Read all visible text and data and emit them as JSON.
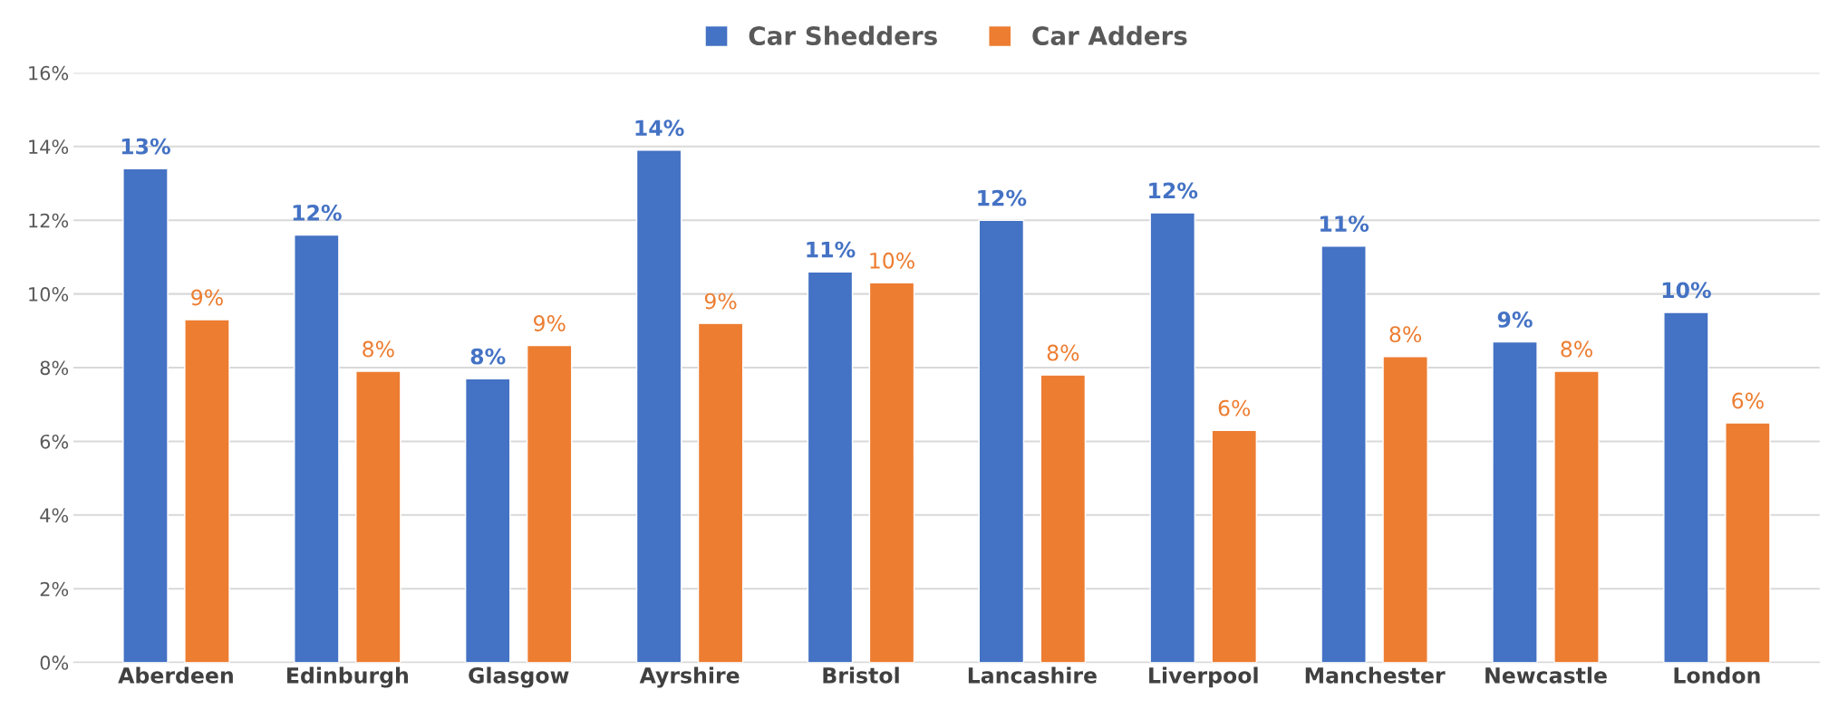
{
  "chart_data": {
    "type": "bar",
    "categories": [
      "Aberdeen",
      "Edinburgh",
      "Glasgow",
      "Ayrshire",
      "Bristol",
      "Lancashire",
      "Liverpool",
      "Manchester",
      "Newcastle",
      "London"
    ],
    "series": [
      {
        "name": "Car Shedders",
        "color": "#4472c4",
        "values": [
          13.4,
          11.6,
          7.7,
          13.9,
          10.6,
          12.0,
          12.2,
          11.3,
          8.7,
          9.5
        ],
        "value_labels": [
          "13%",
          "12%",
          "8%",
          "14%",
          "11%",
          "12%",
          "12%",
          "11%",
          "9%",
          "10%"
        ]
      },
      {
        "name": "Car Adders",
        "color": "#ed7d31",
        "values": [
          9.3,
          7.9,
          8.6,
          9.2,
          10.3,
          7.8,
          6.3,
          8.3,
          7.9,
          6.5
        ],
        "value_labels": [
          "9%",
          "8%",
          "9%",
          "9%",
          "10%",
          "8%",
          "6%",
          "8%",
          "8%",
          "6%"
        ]
      }
    ],
    "ylim": [
      0,
      16
    ],
    "yticks": [
      {
        "value": 0,
        "label": "0%"
      },
      {
        "value": 2,
        "label": "2%"
      },
      {
        "value": 4,
        "label": "4%"
      },
      {
        "value": 6,
        "label": "6%"
      },
      {
        "value": 8,
        "label": "8%"
      },
      {
        "value": 10,
        "label": "10%"
      },
      {
        "value": 12,
        "label": "12%"
      },
      {
        "value": 14,
        "label": "14%"
      },
      {
        "value": 16,
        "label": "16%"
      }
    ],
    "grid": "y",
    "legend": "top"
  }
}
